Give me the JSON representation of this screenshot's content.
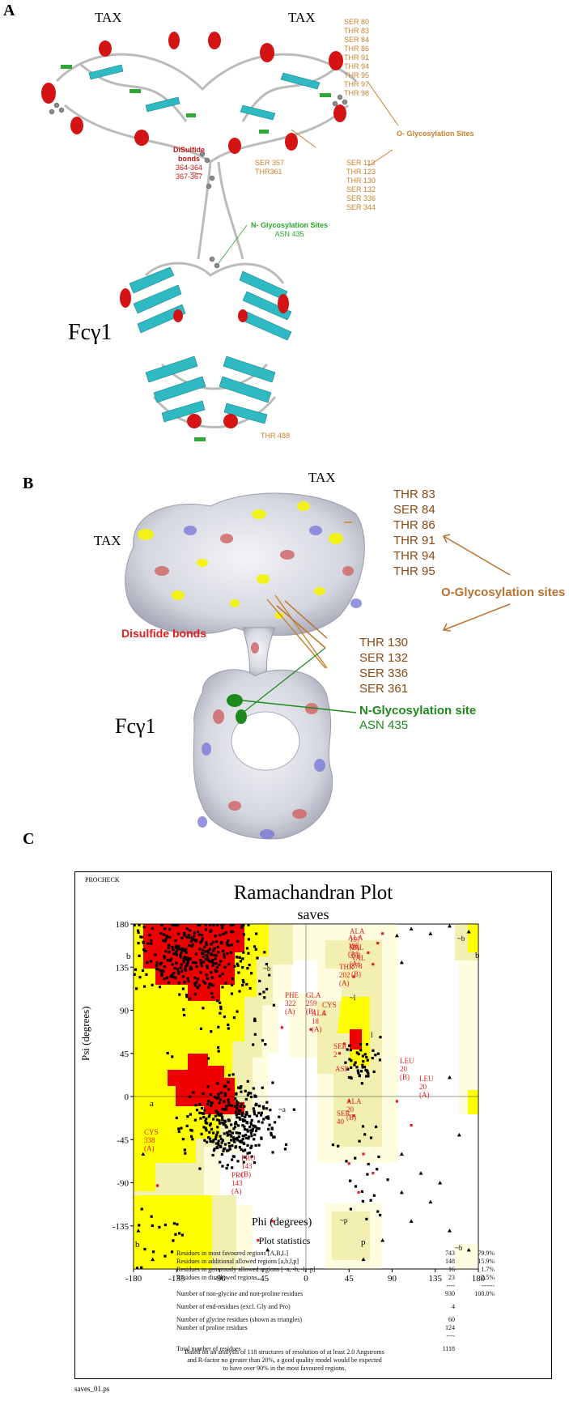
{
  "panel_a": {
    "label": "A",
    "tax_left": "TAX",
    "tax_right": "TAX",
    "o_glyco_list_top": [
      "SER 80",
      "THR 83",
      "SER 84",
      "THR 86",
      "THR 91",
      "THR 94",
      "THR 95",
      "THR 97",
      "THR 98"
    ],
    "o_glyco_label": "O- Glycosylation Sites",
    "disulfide_label_1": "DiSulfide",
    "disulfide_label_2": "bonds",
    "disulfide_label_3": "364-364",
    "disulfide_label_4": "367-367",
    "mid_sites": [
      "SER 357",
      "THR361"
    ],
    "o_glyco_list_mid": [
      "SER 113",
      "THR 123",
      "THR 130",
      "SER 132",
      "SER 336",
      "SER 344"
    ],
    "n_glyco_label": "N- Glycosylation Sites",
    "n_glyco_site": "ASN 435",
    "fc_label": "Fcγ1",
    "thr_bottom": "THR 488"
  },
  "panel_b": {
    "label": "B",
    "tax_left": "TAX",
    "tax_right": "TAX",
    "o_list_top": [
      "THR 83",
      "SER 84",
      "THR 86",
      "THR 91",
      "THR 94",
      "THR 95"
    ],
    "o_glyco_label": "O-Glycosylation sites",
    "disulfide_label": "Disulfide bonds",
    "o_list_bottom": [
      "THR 130",
      "SER 132",
      "SER 336",
      "SER 361"
    ],
    "n_glyco_label": "N-Glycosylation site",
    "n_glyco_site": "ASN 435",
    "fc_label": "Fcγ1"
  },
  "panel_c": {
    "label": "C",
    "procheck": "PROCHECK",
    "title": "Ramachandran Plot",
    "subtitle": "saves",
    "xlabel": "Phi (degrees)",
    "ylabel": "Psi (degrees)",
    "xticks": [
      "-180",
      "-135",
      "-90",
      "-45",
      "0",
      "45",
      "90",
      "135",
      "180"
    ],
    "yticks": [
      "180",
      "135",
      "90",
      "45",
      "0",
      "-45",
      "-90",
      "-135"
    ],
    "region_labels": [
      "b",
      "b",
      "~b",
      "a",
      "~a",
      "~l",
      "l",
      "~p",
      "p",
      "~b",
      "b"
    ],
    "residue_labels": [
      "ALA 197 (B)",
      "ALA 197 (A)",
      "VAL 378 (A)",
      "VAL 378 (B)",
      "THR 202 (A)",
      "PHE 322 (A)",
      "GLA 259 (B)",
      "CYS 4",
      "ALA 18 (A)",
      "SER 2",
      "LEU 20 (B)",
      "LEU 20 (A)",
      "ASP",
      "ALA 20 (B)",
      "SER 40",
      "CYS 338 (A)",
      "PRO 143 (B)",
      "PRO 143 (A)"
    ],
    "stats_title": "Plot statistics",
    "stats_rows": [
      {
        "label": "Residues in most favoured regions [A,B,L]",
        "count": "743",
        "pct": "79.9%"
      },
      {
        "label": "Residues in additional allowed regions [a,b,l,p]",
        "count": "148",
        "pct": "15.9%"
      },
      {
        "label": "Residues in generously allowed regions [~a,~b,~l,~p]",
        "count": "16",
        "pct": "1.7%"
      },
      {
        "label": "Residues in disallowed regions",
        "count": "23",
        "pct": "2.5%"
      },
      {
        "label": "",
        "count": "----",
        "pct": "------"
      },
      {
        "label": "Number of non-glycine and non-proline residues",
        "count": "930",
        "pct": "100.0%"
      },
      {
        "label": "Number of end-residues (excl. Gly and Pro)",
        "count": "4",
        "pct": ""
      },
      {
        "label": "Number of glycine residues (shown as triangles)",
        "count": "60",
        "pct": ""
      },
      {
        "label": "Number of proline residues",
        "count": "124",
        "pct": ""
      },
      {
        "label": "",
        "count": "----",
        "pct": ""
      },
      {
        "label": "Total number of residues",
        "count": "1118",
        "pct": ""
      }
    ],
    "footnote_1": "Based on an analysis of 118 structures of resolution of at least 2.0 Angstroms",
    "footnote_2": "and R-factor no greater than 20%, a good quality model would be expected",
    "footnote_3": "to have over 90% in the most favoured regions.",
    "filename": "saves_01.ps"
  },
  "colors": {
    "red": "#ee0000",
    "yellow": "#ffff00",
    "paleyellow": "#f2f0b0",
    "cream": "#fffde0",
    "orange": "#c8822c",
    "brown": "#8a4a16",
    "green": "#1a8a1a"
  }
}
